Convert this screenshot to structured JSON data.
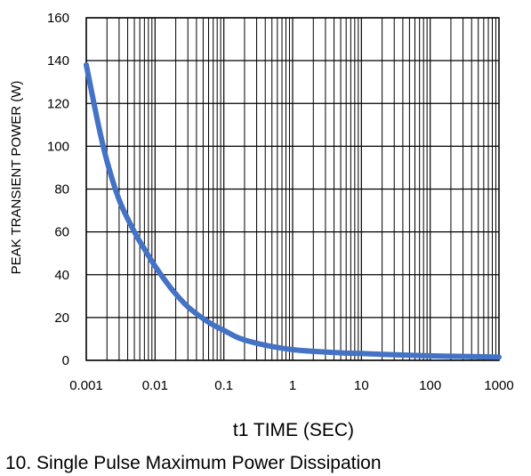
{
  "chart_data": {
    "type": "line",
    "title": "",
    "xlabel": "t1 TIME (SEC)",
    "ylabel": "PEAK TRANSIENT POWER (W)",
    "x_scale": "log",
    "xlim": [
      0.001,
      1000
    ],
    "ylim": [
      0,
      160
    ],
    "x_ticks": [
      "0.001",
      "0.01",
      "0.1",
      "1",
      "10",
      "100",
      "1000"
    ],
    "y_ticks": [
      "0",
      "20",
      "40",
      "60",
      "80",
      "100",
      "120",
      "140",
      "160"
    ],
    "grid": true,
    "series": [
      {
        "color": "#4472c4",
        "x": [
          0.001,
          0.0015,
          0.002,
          0.003,
          0.005,
          0.007,
          0.01,
          0.015,
          0.02,
          0.03,
          0.05,
          0.07,
          0.1,
          0.15,
          0.2,
          0.3,
          0.5,
          1,
          2,
          5,
          10,
          20,
          50,
          100,
          200,
          500,
          1000
        ],
        "y": [
          138,
          110,
          93,
          75,
          60,
          52,
          44,
          36,
          31,
          25,
          19.5,
          16.5,
          14,
          11,
          9.5,
          8,
          6.5,
          5,
          4.2,
          3.5,
          3.2,
          2.8,
          2.4,
          2.1,
          1.9,
          1.7,
          1.5
        ]
      }
    ]
  },
  "caption": "10. Single Pulse Maximum Power Dissipation"
}
